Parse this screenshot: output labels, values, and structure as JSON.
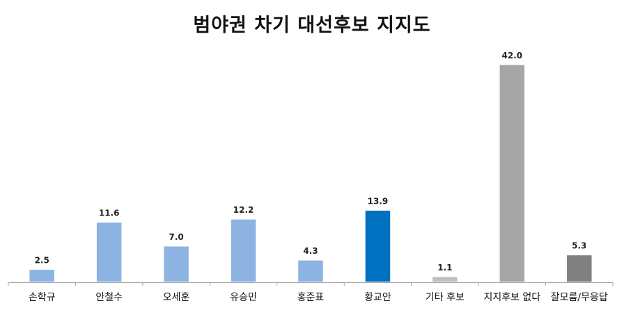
{
  "chart_data": {
    "type": "bar",
    "title": "범야권 차기 대선후보 지지도",
    "categories": [
      "손학규",
      "안철수",
      "오세훈",
      "유승민",
      "홍준표",
      "황교안",
      "기타 후보",
      "지지후보 없다",
      "잘모름/무응답"
    ],
    "values": [
      2.5,
      11.6,
      7.0,
      12.2,
      4.3,
      13.9,
      1.1,
      42.0,
      5.3
    ],
    "data_labels": [
      "2.5",
      "11.6",
      "7.0",
      "12.2",
      "4.3",
      "13.9",
      "1.1",
      "42.0",
      "5.3"
    ],
    "colors": [
      "#8db3e2",
      "#8db3e2",
      "#8db3e2",
      "#8db3e2",
      "#8db3e2",
      "#0070c0",
      "#bfbfbf",
      "#a6a6a6",
      "#808080"
    ],
    "axis_color": "#a6a6a6",
    "ylim": [
      0,
      48
    ],
    "grid": false,
    "legend": "none",
    "xlabel": "",
    "ylabel": ""
  }
}
